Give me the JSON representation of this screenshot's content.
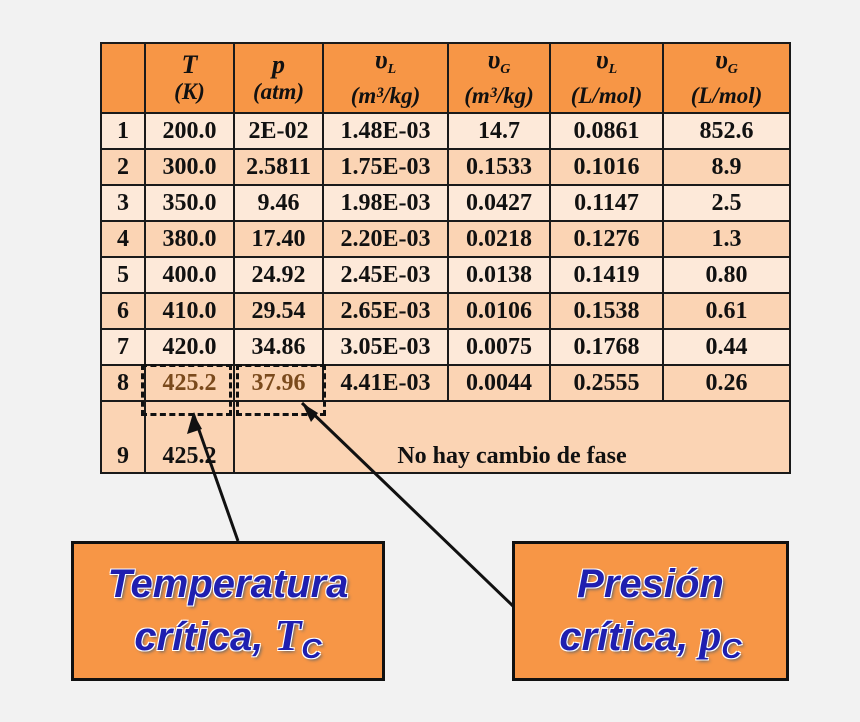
{
  "table": {
    "headers": [
      {
        "symbol": "",
        "sub": "",
        "unit": ""
      },
      {
        "symbol": "T",
        "sub": "",
        "unit": "(K)"
      },
      {
        "symbol": "p",
        "sub": "",
        "unit": "(atm)"
      },
      {
        "symbol": "υ",
        "sub": "L",
        "unit": "(m³/kg)"
      },
      {
        "symbol": "υ",
        "sub": "G",
        "unit": "(m³/kg)"
      },
      {
        "symbol": "υ",
        "sub": "L",
        "unit": "(L/mol)"
      },
      {
        "symbol": "υ",
        "sub": "G",
        "unit": "(L/mol)"
      }
    ],
    "rows": [
      [
        "1",
        "200.0",
        "2E-02",
        "1.48E-03",
        "14.7",
        "0.0861",
        "852.6"
      ],
      [
        "2",
        "300.0",
        "2.5811",
        "1.75E-03",
        "0.1533",
        "0.1016",
        "8.9"
      ],
      [
        "3",
        "350.0",
        "9.46",
        "1.98E-03",
        "0.0427",
        "0.1147",
        "2.5"
      ],
      [
        "4",
        "380.0",
        "17.40",
        "2.20E-03",
        "0.0218",
        "0.1276",
        "1.3"
      ],
      [
        "5",
        "400.0",
        "24.92",
        "2.45E-03",
        "0.0138",
        "0.1419",
        "0.80"
      ],
      [
        "6",
        "410.0",
        "29.54",
        "2.65E-03",
        "0.0106",
        "0.1538",
        "0.61"
      ],
      [
        "7",
        "420.0",
        "34.86",
        "3.05E-03",
        "0.0075",
        "0.1768",
        "0.44"
      ],
      [
        "8",
        "425.2",
        "37.96",
        "4.41E-03",
        "0.0044",
        "0.2555",
        "0.26"
      ]
    ],
    "last_row": {
      "index": "9",
      "T": "425.2",
      "note": "No hay cambio de fase"
    }
  },
  "callouts": {
    "temperature": {
      "line1": "Temperatura",
      "line2": "crítica,",
      "symbol": "T",
      "sub": "C"
    },
    "pressure": {
      "line1": "Presión",
      "line2": "crítica,",
      "symbol": "p",
      "sub": "C"
    }
  },
  "colors": {
    "header": "#f79646",
    "row_light": "#fde9d9",
    "row_dark": "#fbd4b4",
    "callout_text": "#1f1fb0"
  }
}
